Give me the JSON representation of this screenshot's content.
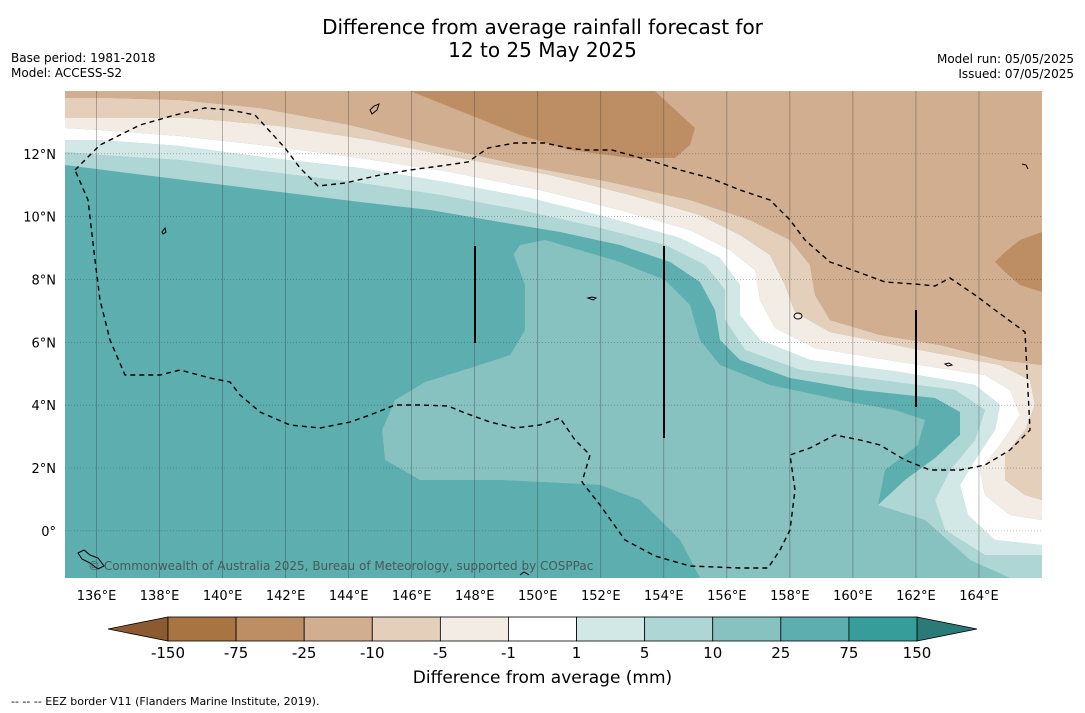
{
  "title_line1": "Difference from average rainfall forecast for",
  "title_line2": "12 to 25 May 2025",
  "meta_left": [
    "Base period: 1981-2018",
    "Model: ACCESS-S2"
  ],
  "meta_right": [
    "Model run: 05/05/2025",
    "Issued: 07/05/2025"
  ],
  "map": {
    "lon_range": [
      135,
      166
    ],
    "lat_range": [
      -1.5,
      14
    ],
    "lon_ticks": [
      "136°E",
      "138°E",
      "140°E",
      "142°E",
      "144°E",
      "146°E",
      "148°E",
      "150°E",
      "152°E",
      "154°E",
      "156°E",
      "158°E",
      "160°E",
      "162°E",
      "164°E"
    ],
    "lat_ticks": [
      "12°N",
      "10°N",
      "8°N",
      "6°N",
      "4°N",
      "2°N",
      "0°"
    ],
    "watermark": "© Commonwealth of Australia 2025, Bureau of Meteorology, supported by COSPPac"
  },
  "colorbar": {
    "title": "Difference from average (mm)",
    "tick_labels": [
      "-150",
      "-75",
      "-25",
      "-10",
      "-5",
      "-1",
      "1",
      "5",
      "10",
      "25",
      "75",
      "150"
    ],
    "colors": [
      "#a87442",
      "#bd8e64",
      "#d1ae8f",
      "#e4cfbb",
      "#f3ece5",
      "#ffffff",
      "#d2e8e7",
      "#aed6d5",
      "#87c1c0",
      "#5daeaf",
      "#379d9b"
    ],
    "end_colors": [
      "#8c5a30",
      "#2a7a78"
    ]
  },
  "footnote": "--  --  -- EEZ border V11 (Flanders Marine Institute, 2019)."
}
